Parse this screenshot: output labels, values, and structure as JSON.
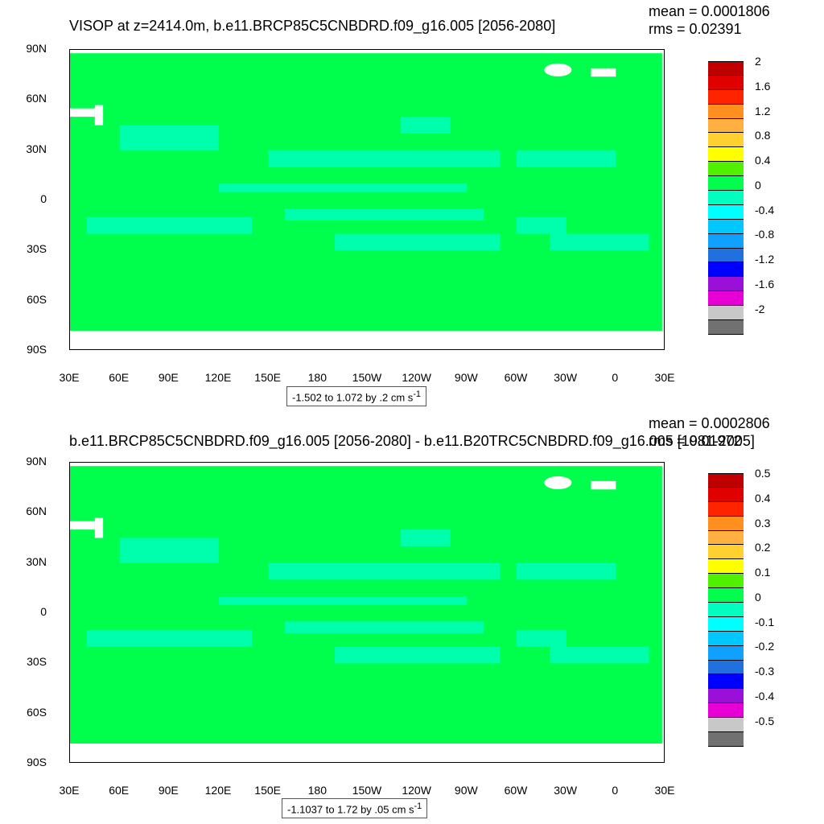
{
  "colors": {
    "land_cmap_bin_0_to_0_4": "#00ff4c",
    "cmap": [
      "#717171",
      "#c8c8c8",
      "#e600d6",
      "#9a10d8",
      "#0000ff",
      "#2070e0",
      "#10a0ff",
      "#00c8ff",
      "#00ffff",
      "#00ffbe",
      "#00ff4c",
      "#50f000",
      "#ffff00",
      "#ffd030",
      "#ffb040",
      "#ff9020",
      "#ff2400",
      "#e00000",
      "#c00000"
    ]
  },
  "chart_data": [
    {
      "type": "heatmap",
      "title": "VISOP at z=2414.0m, b.e11.BRCP85C5CNBDRD.f09_g16.005 [2056-2080]",
      "stats": {
        "mean": "mean = 0.0001806",
        "rms": "rms = 0.02391"
      },
      "ytick_labels": [
        "90N",
        "60N",
        "30N",
        "0",
        "30S",
        "60S",
        "90S"
      ],
      "xtick_labels": [
        "30E",
        "60E",
        "90E",
        "120E",
        "150E",
        "180",
        "150W",
        "120W",
        "90W",
        "60W",
        "30W",
        "0",
        "30E"
      ],
      "ylim": [
        -90,
        90
      ],
      "xlim": [
        30,
        390
      ],
      "range_text": "-1.502 to 1.072 by .2 cm s",
      "range_sup": "-1",
      "colorbar": {
        "levels": [
          "2",
          "1.6",
          "1.2",
          "0.8",
          "0.4",
          "0",
          "-0.4",
          "-0.8",
          "-1.2",
          "-1.6",
          "-2"
        ]
      }
    },
    {
      "type": "heatmap",
      "title": "b.e11.BRCP85C5CNBDRD.f09_g16.005 [2056-2080] - b.e11.B20TRC5CNBDRD.f09_g16.005 [1981-2005]",
      "stats": {
        "mean": "mean = 0.0002806",
        "rms": "rms = 0.01972"
      },
      "ytick_labels": [
        "90N",
        "60N",
        "30N",
        "0",
        "30S",
        "60S",
        "90S"
      ],
      "xtick_labels": [
        "30E",
        "60E",
        "90E",
        "120E",
        "150E",
        "180",
        "150W",
        "120W",
        "90W",
        "60W",
        "30W",
        "0",
        "30E"
      ],
      "ylim": [
        -90,
        90
      ],
      "xlim": [
        30,
        390
      ],
      "range_text": "-1.1037 to 1.72 by .05 cm s",
      "range_sup": "-1",
      "colorbar": {
        "levels": [
          "0.5",
          "0.4",
          "0.3",
          "0.2",
          "0.1",
          "0",
          "-0.1",
          "-0.2",
          "-0.3",
          "-0.4",
          "-0.5"
        ]
      }
    }
  ]
}
